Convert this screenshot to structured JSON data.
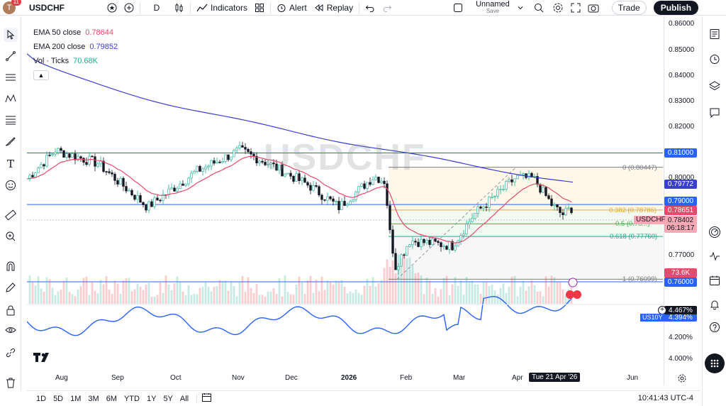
{
  "topbar": {
    "avatar_letter": "T",
    "notif_count": "11",
    "symbol": "USDCHF",
    "interval": "D",
    "indicators_label": "Indicators",
    "alert_label": "Alert",
    "replay_label": "Replay",
    "layout_name": "Unnamed",
    "layout_sub": "Save",
    "trade_label": "Trade",
    "publish_label": "Publish"
  },
  "legend": {
    "ema50_label": "EMA 50 close",
    "ema50_value": "0.78644",
    "ema200_label": "EMA 200 close",
    "ema200_value": "0.79852",
    "vol_label": "Vol · Ticks",
    "vol_value": "70.68K"
  },
  "watermark": "USDCHF",
  "price_scale": {
    "ticks": [
      "0.86000",
      "0.85000",
      "0.84000",
      "0.83000",
      "0.82000",
      "0.81000",
      "0.80000",
      "0.79772",
      "0.79000",
      "0.78651",
      "0.78402",
      "06:18:17",
      "0.77000",
      "73.6K",
      "0.76000"
    ]
  },
  "fib": {
    "f0": "0 (0.80447)",
    "f382": "0.382 (0.78786)",
    "f5": "0.5 (0.78...)",
    "f618": "0.618 (0.77760)",
    "f1": "1 (0.76099)"
  },
  "price_tags": {
    "level_081": "0.81000",
    "ema200": "0.79772",
    "level_079": "0.79000",
    "ema50": "0.78651",
    "symbol": "USDCHF",
    "last": "0.78402",
    "countdown": "06:18:17",
    "volume": "73.6K",
    "level_076": "0.76000"
  },
  "us10y": {
    "label": "US10Y",
    "value_a": "4.467%",
    "value_b": "4.394%",
    "ticks": [
      "4.200%",
      "4.000%"
    ]
  },
  "time_axis": {
    "labels": [
      "Aug",
      "Sep",
      "Oct",
      "Nov",
      "Dec",
      "2026",
      "Feb",
      "Mar",
      "Apr",
      "Jun"
    ],
    "cursor": "Tue 21 Apr '26"
  },
  "bottom": {
    "ranges": [
      "1D",
      "5D",
      "1M",
      "3M",
      "6M",
      "YTD",
      "1Y",
      "5Y",
      "All"
    ],
    "clock": "10:41:43 UTC-4"
  },
  "colors": {
    "ema50": "#e84a6b",
    "ema200": "#3b3fcf",
    "up": "#22ab94",
    "down": "#131722",
    "us10y": "#2962ff",
    "hline": "#2962ff"
  }
}
